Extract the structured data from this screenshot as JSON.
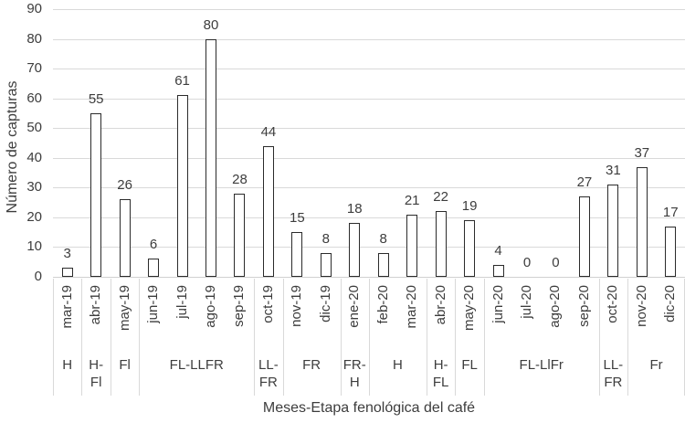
{
  "chart_data": {
    "type": "bar",
    "title": "",
    "xlabel": "Meses-Etapa fenológica del café",
    "ylabel": "Número de capturas",
    "ylim": [
      0,
      90
    ],
    "ytick_step": 10,
    "grid": true,
    "legend": false,
    "categories": [
      "mar-19",
      "abr-19",
      "may-19",
      "jun-19",
      "jul-19",
      "ago-19",
      "sep-19",
      "oct-19",
      "nov-19",
      "dic-19",
      "ene-20",
      "feb-20",
      "mar-20",
      "abr-20",
      "may-20",
      "jun-20",
      "jul-20",
      "ago-20",
      "sep-20",
      "oct-20",
      "nov-20",
      "dic-20"
    ],
    "values": [
      3,
      55,
      26,
      6,
      61,
      80,
      28,
      44,
      15,
      8,
      18,
      8,
      21,
      22,
      19,
      4,
      0,
      0,
      27,
      31,
      37,
      17
    ],
    "groups": [
      {
        "label": "H",
        "span": 1
      },
      {
        "label": "H-Fl",
        "span": 1
      },
      {
        "label": "Fl",
        "span": 1
      },
      {
        "label": "FL-LLFR",
        "span": 4
      },
      {
        "label": "LL-FR",
        "span": 1
      },
      {
        "label": "FR",
        "span": 2
      },
      {
        "label": "FR-H",
        "span": 1
      },
      {
        "label": "H",
        "span": 2
      },
      {
        "label": "H-FL",
        "span": 1
      },
      {
        "label": "FL",
        "span": 1
      },
      {
        "label": "FL-LlFr",
        "span": 4
      },
      {
        "label": "LL-FR",
        "span": 1
      },
      {
        "label": "Fr",
        "span": 2
      }
    ],
    "colors": {
      "bar_fill": "#ffffff",
      "bar_outline": "#2b2b2b",
      "gridline": "#d9d9d9",
      "text": "#3d3d3d"
    }
  }
}
